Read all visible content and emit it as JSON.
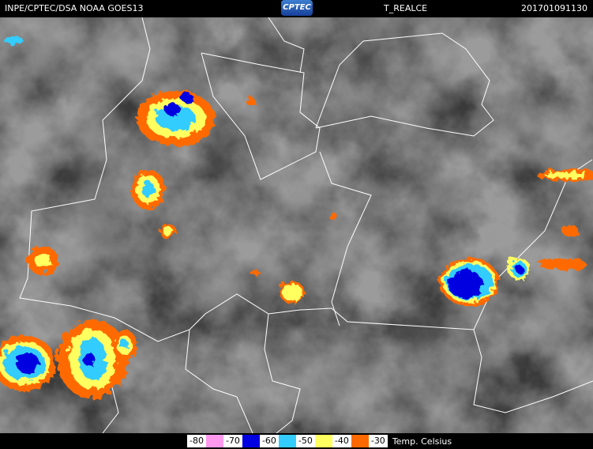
{
  "header": {
    "source": "INPE/CPTEC/DSA NOAA GOES13",
    "logo": "CPTEC",
    "product": "T_REALCE",
    "timestamp": "201701091130"
  },
  "legend": {
    "labels": [
      -80,
      -70,
      -60,
      -50,
      -40,
      -30
    ],
    "colors": [
      "#ff99ee",
      "#0000e0",
      "#33ccff",
      "#ffff60",
      "#ff6a00"
    ],
    "unit": "Temp. Celsius"
  }
}
